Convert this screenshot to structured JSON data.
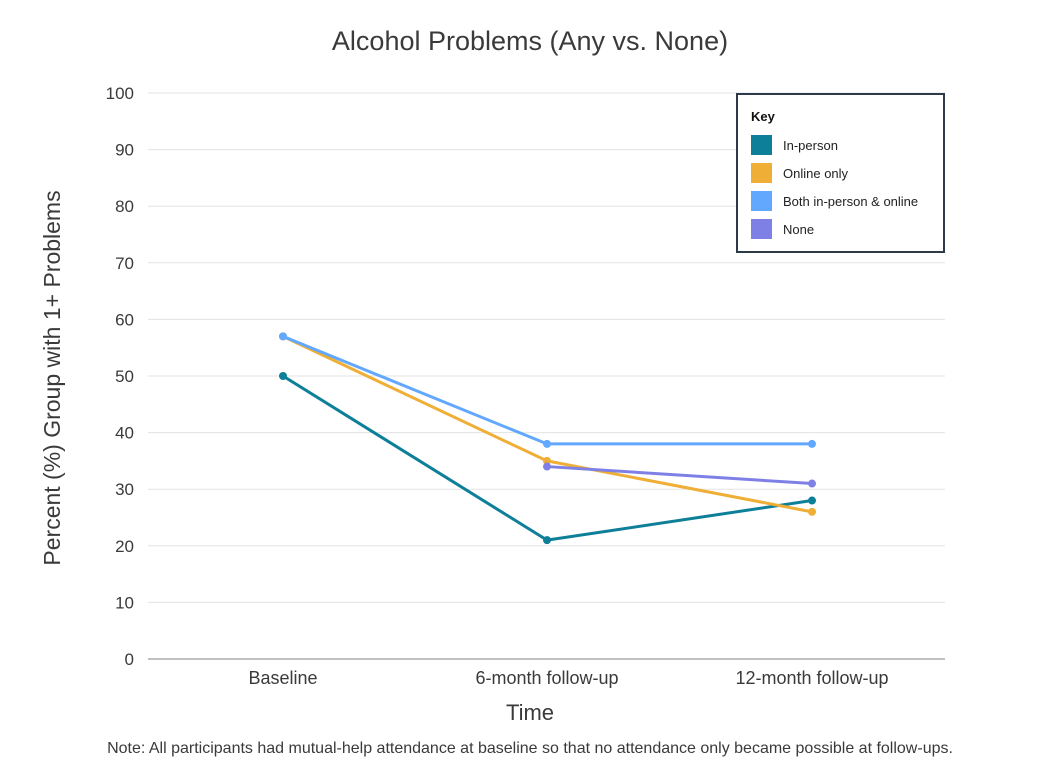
{
  "chart_data": {
    "type": "line",
    "title": "Alcohol Problems (Any vs. None)",
    "xlabel": "Time",
    "ylabel": "Percent (%) Group with 1+ Problems",
    "categories": [
      "Baseline",
      "6-month follow-up",
      "12-month follow-up"
    ],
    "ylim": [
      0,
      100
    ],
    "yticks": [
      0,
      10,
      20,
      30,
      40,
      50,
      60,
      70,
      80,
      90,
      100
    ],
    "grid": true,
    "legend": {
      "title": "Key",
      "placement": "top-right",
      "entries": [
        "In-person",
        "Online only",
        "Both in-person & online",
        "None"
      ]
    },
    "series": [
      {
        "name": "In-person",
        "color": "#0e7f99",
        "values": [
          50,
          21,
          28
        ]
      },
      {
        "name": "Online only",
        "color": "#efae35",
        "values": [
          57,
          35,
          26
        ]
      },
      {
        "name": "Both in-person & online",
        "color": "#62a8ff",
        "values": [
          57,
          38,
          38
        ]
      },
      {
        "name": "None",
        "color": "#7e80e6",
        "values": [
          null,
          34,
          31
        ]
      }
    ],
    "note": "Note: All participants had mutual-help attendance at baseline so that no attendance only became possible at follow-ups."
  }
}
